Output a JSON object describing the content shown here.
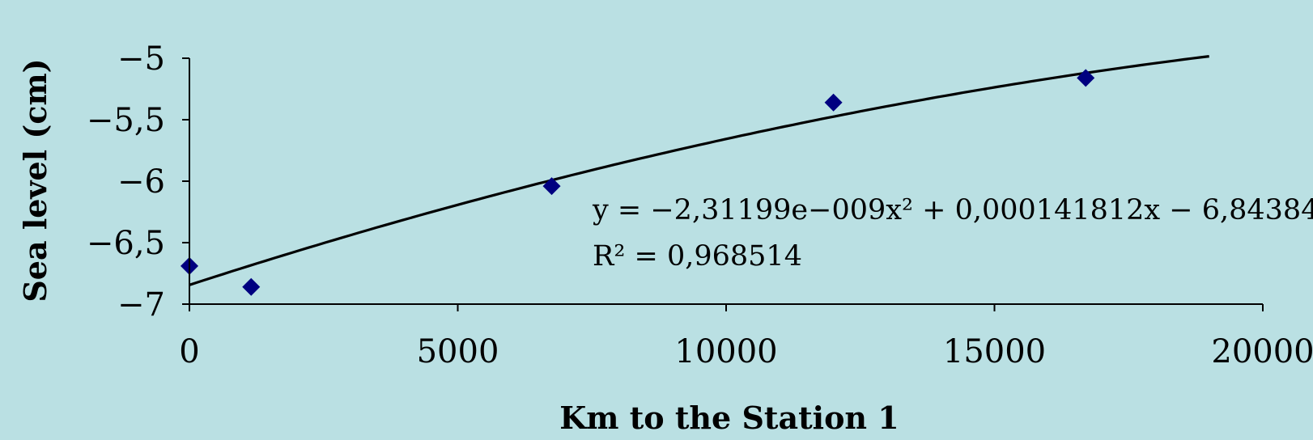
{
  "chart_data": {
    "type": "scatter",
    "title": "",
    "xlabel": "Km to the Station 1",
    "ylabel": "Sea level (cm)",
    "xlim": [
      0,
      20000
    ],
    "ylim": [
      -7,
      -5
    ],
    "x_ticks": [
      0,
      5000,
      10000,
      15000,
      20000
    ],
    "x_tick_labels": [
      "0",
      "5000",
      "10000",
      "15000",
      "20000"
    ],
    "y_ticks": [
      -5,
      -5.5,
      -6,
      -6.5,
      -7
    ],
    "y_tick_labels": [
      "−5",
      "−5,5",
      "−6",
      "−6,5",
      "−7"
    ],
    "grid": false,
    "legend": "none",
    "marker": "diamond",
    "marker_color": "#000080",
    "background_color": "#bae0e3",
    "series": [
      {
        "x": [
          0,
          1150,
          6750,
          12000,
          16700
        ],
        "y": [
          -6.69,
          -6.86,
          -6.04,
          -5.36,
          -5.16
        ]
      }
    ],
    "trendline": {
      "type": "polynomial",
      "order": 2,
      "coefficients": {
        "a": -2.31199e-09,
        "b": 0.000141812,
        "c": -6.84384
      },
      "x_range": [
        0,
        19000
      ],
      "color": "#000000"
    },
    "annotations": {
      "equation": "y = −2,31199e−009x² + 0,000141812x − 6,84384",
      "r_squared": "R² = 0,968514"
    }
  }
}
